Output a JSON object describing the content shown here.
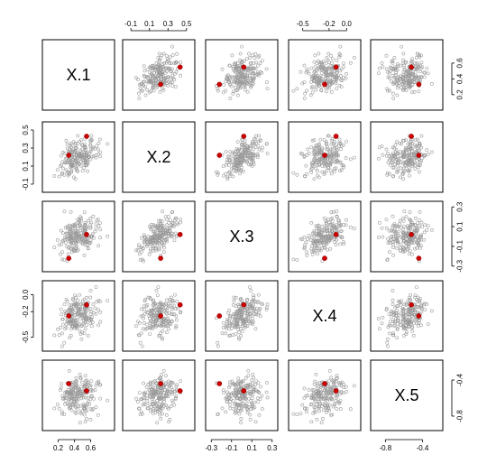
{
  "chart_data": {
    "type": "scatter-matrix",
    "variables": [
      "X.1",
      "X.2",
      "X.3",
      "X.4",
      "X.5"
    ],
    "ranges": {
      "X.1": [
        0.05,
        0.85
      ],
      "X.2": [
        -0.15,
        0.55
      ],
      "X.3": [
        -0.32,
        0.32
      ],
      "X.4": [
        -0.62,
        0.12
      ],
      "X.5": [
        -0.92,
        -0.22
      ]
    },
    "ticks": {
      "X.1": {
        "values": [
          0.2,
          0.4,
          0.6
        ],
        "labels": [
          "0.2",
          "0.4",
          "0.6"
        ]
      },
      "X.2": {
        "values": [
          -0.1,
          0.1,
          0.3,
          0.5
        ],
        "labels": [
          "-0.1",
          "0.1",
          "0.3",
          "0.5"
        ]
      },
      "X.3": {
        "values": [
          -0.3,
          -0.1,
          0.1,
          0.3
        ],
        "labels": [
          "-0.3",
          "-0.1",
          "0.1",
          "0.3"
        ]
      },
      "X.4": {
        "values": [
          -0.5,
          -0.2,
          0.0
        ],
        "labels": [
          "-0.5",
          "-0.2",
          "0.0"
        ]
      },
      "X.5": {
        "values": [
          -0.8,
          -0.4
        ],
        "labels": [
          "-0.8",
          "-0.4"
        ]
      }
    },
    "highlighted": [
      {
        "color": "#cc0000",
        "values": {
          "X.1": 0.55,
          "X.2": 0.43,
          "X.3": 0.02,
          "X.4": -0.12,
          "X.5": -0.52
        }
      },
      {
        "color": "#cc0000",
        "values": {
          "X.1": 0.33,
          "X.2": 0.22,
          "X.3": -0.22,
          "X.4": -0.25,
          "X.5": -0.44
        }
      }
    ],
    "point_count": 200,
    "point_color": "#9a9a9a",
    "grid": false
  }
}
